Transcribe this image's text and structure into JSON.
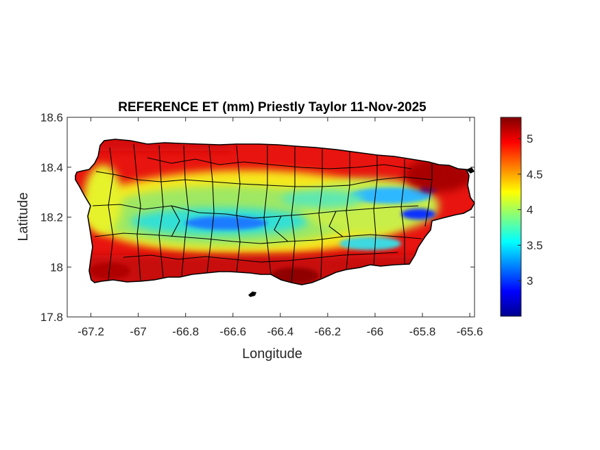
{
  "chart_data": {
    "type": "heatmap",
    "title": "REFERENCE ET (mm) Priestly Taylor 11-Nov-2025",
    "xlabel": "Longitude",
    "ylabel": "Latitude",
    "xlim": [
      -67.3,
      -65.58
    ],
    "ylim": [
      17.8,
      18.6
    ],
    "xticks": [
      -67.2,
      -67,
      -66.8,
      -66.6,
      -66.4,
      -66.2,
      -66,
      -65.8,
      -65.6
    ],
    "xtick_labels": [
      "-67.2",
      "-67",
      "-66.8",
      "-66.6",
      "-66.4",
      "-66.2",
      "-66",
      "-65.8",
      "-65.6"
    ],
    "yticks": [
      17.8,
      18,
      18.2,
      18.4,
      18.6
    ],
    "ytick_labels": [
      "17.8",
      "18",
      "18.2",
      "18.4",
      "18.6"
    ],
    "colorbar": {
      "colormap": "jet",
      "range": [
        2.5,
        5.3
      ],
      "ticks": [
        3,
        3.5,
        4,
        4.5,
        5
      ],
      "tick_labels": [
        "3",
        "3.5",
        "4",
        "4.5",
        "5"
      ]
    },
    "region": "Puerto Rico (municipality boundaries)",
    "pattern": {
      "coast_value": 5.1,
      "south_coast_value": 5.2,
      "northeast_value": 5.3,
      "interior_value": 3.7,
      "central_ridge_value": 3.2,
      "eastern_valley_min": 2.9
    },
    "grid": false
  }
}
